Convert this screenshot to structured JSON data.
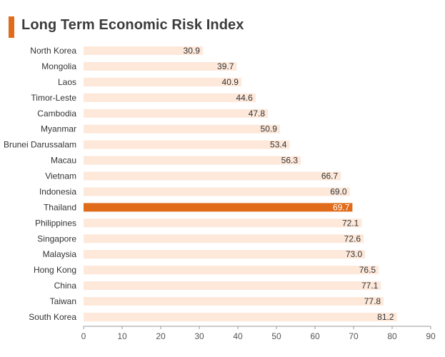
{
  "chart_data": {
    "type": "bar",
    "orientation": "horizontal",
    "title": "Long Term Economic Risk Index",
    "categories": [
      "North Korea",
      "Mongolia",
      "Laos",
      "Timor-Leste",
      "Cambodia",
      "Myanmar",
      "Brunei Darussalam",
      "Macau",
      "Vietnam",
      "Indonesia",
      "Thailand",
      "Philippines",
      "Singapore",
      "Malaysia",
      "Hong Kong",
      "China",
      "Taiwan",
      "South Korea"
    ],
    "values": [
      30.9,
      39.7,
      40.9,
      44.6,
      47.8,
      50.9,
      53.4,
      56.3,
      66.7,
      69.0,
      69.7,
      72.1,
      72.6,
      73.0,
      76.5,
      77.1,
      77.8,
      81.2
    ],
    "value_labels": [
      "30.9",
      "39.7",
      "40.9",
      "44.6",
      "47.8",
      "50.9",
      "53.4",
      "56.3",
      "66.7",
      "69.0",
      "69.7",
      "72.1",
      "72.6",
      "73.0",
      "76.5",
      "77.1",
      "77.8",
      "81.2"
    ],
    "highlight": "Thailand",
    "xlim": [
      0,
      90
    ],
    "xticks": [
      "0",
      "10",
      "20",
      "30",
      "40",
      "50",
      "60",
      "70",
      "80",
      "90"
    ],
    "grid": false,
    "colors": {
      "bar": "#fde8da",
      "highlight_bar": "#e06c1b",
      "accent": "#e06c1b",
      "axis": "#999999"
    }
  }
}
